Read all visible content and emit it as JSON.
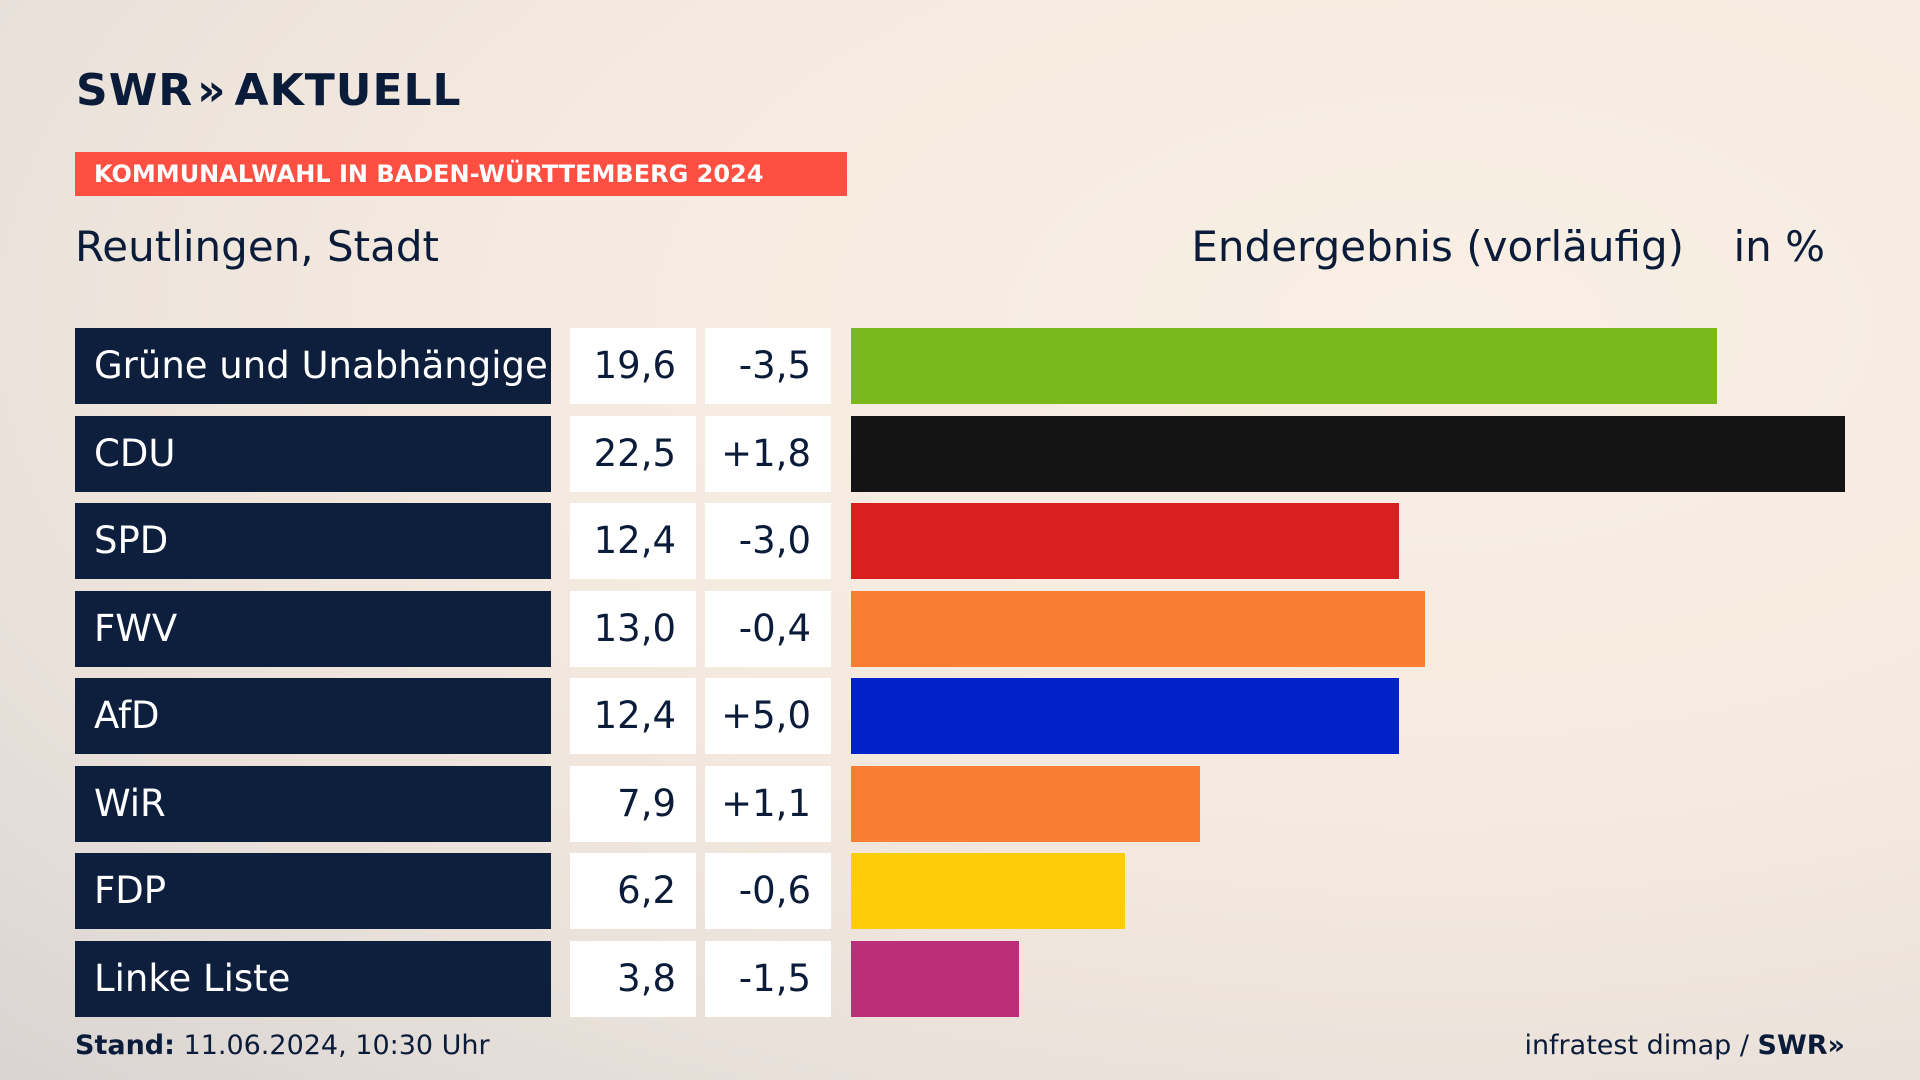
{
  "header": {
    "logo_text": "SWR",
    "logo_chevron": "»",
    "logo_suffix": "AKTUELL",
    "banner": "KOMMUNALWAHL IN BADEN-WÜRTTEMBERG 2024",
    "subtitle": "Reutlingen, Stadt",
    "result_label": "Endergebnis (vorläufig)",
    "unit_label": "in %"
  },
  "chart_data": {
    "type": "bar",
    "orientation": "horizontal",
    "title": "KOMMUNALWAHL IN BADEN-WÜRTTEMBERG 2024",
    "subtitle": "Reutlingen, Stadt",
    "ylabel": "in %",
    "xlim": [
      0,
      22.5
    ],
    "categories": [
      "Grüne und Unabhängige",
      "CDU",
      "SPD",
      "FWV",
      "AfD",
      "WiR",
      "FDP",
      "Linke Liste"
    ],
    "values": [
      19.6,
      22.5,
      12.4,
      13.0,
      12.4,
      7.9,
      6.2,
      3.8
    ],
    "value_labels": [
      "19,6",
      "22,5",
      "12,4",
      "13,0",
      "12,4",
      "7,9",
      "6,2",
      "3,8"
    ],
    "diff_labels": [
      "-3,5",
      "+1,8",
      "-3,0",
      "-0,4",
      "+5,0",
      "+1,1",
      "-0,6",
      "-1,5"
    ],
    "colors": [
      "#7ab91e",
      "#141414",
      "#d7201f",
      "#f97d33",
      "#0022c8",
      "#f97d33",
      "#fdcd0c",
      "#bc2f78"
    ]
  },
  "footer": {
    "stand_label": "Stand:",
    "stand_value": "11.06.2024, 10:30 Uhr",
    "source": "infratest dimap / ",
    "brand": "SWR»"
  }
}
